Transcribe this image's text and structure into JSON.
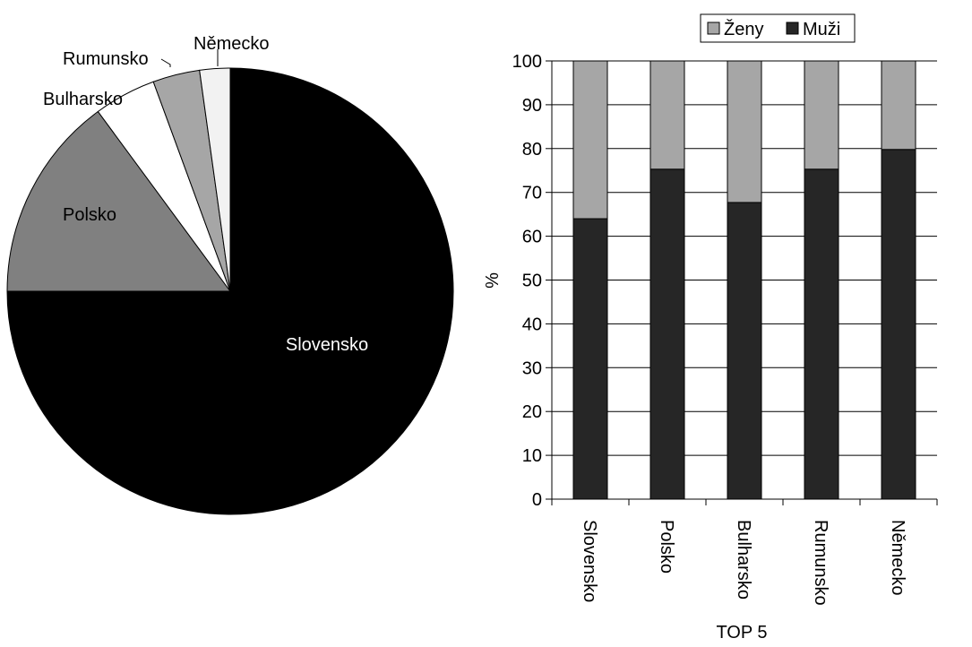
{
  "chart_data": [
    {
      "type": "pie",
      "title": "",
      "slices": [
        {
          "label": "Slovensko",
          "value": 75.0,
          "color": "#000000",
          "label_color": "#ffffff"
        },
        {
          "label": "Polsko",
          "value": 14.9,
          "color": "#808080",
          "label_color": "#000000"
        },
        {
          "label": "Bulharsko",
          "value": 4.5,
          "color": "#ffffff",
          "label_color": "#000000"
        },
        {
          "label": "Rumunsko",
          "value": 3.4,
          "color": "#a6a6a6",
          "label_color": "#000000"
        },
        {
          "label": "Německo",
          "value": 2.2,
          "color": "#f2f2f2",
          "label_color": "#000000"
        }
      ]
    },
    {
      "type": "bar",
      "stacked": true,
      "title": "",
      "categories": [
        "Slovensko",
        "Polsko",
        "Bulharsko",
        "Rumunsko",
        "Německo"
      ],
      "series": [
        {
          "name": "Muži",
          "color": "#262626",
          "values": [
            64,
            75.3,
            67.7,
            75.3,
            79.8
          ]
        },
        {
          "name": "Ženy",
          "color": "#a6a6a6",
          "values": [
            36,
            24.7,
            32.3,
            24.7,
            20.2
          ]
        }
      ],
      "legend_order": [
        "Ženy",
        "Muži"
      ],
      "legend_position": "top",
      "xlabel": "TOP 5",
      "ylabel": "%",
      "ylim": [
        0,
        100
      ],
      "yticks": [
        0,
        10,
        20,
        30,
        40,
        50,
        60,
        70,
        80,
        90,
        100
      ],
      "grid": "horizontal"
    }
  ]
}
